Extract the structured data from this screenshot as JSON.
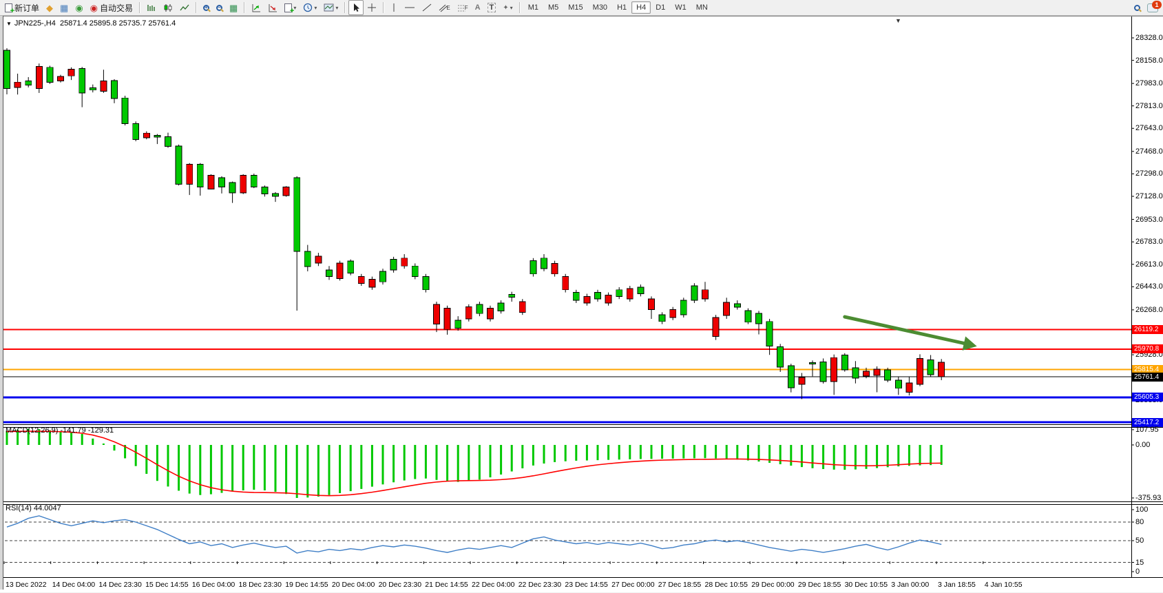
{
  "toolbar": {
    "new_order_label": "新订单",
    "autotrade_label": "自动交易",
    "timeframes": [
      "M1",
      "M5",
      "M15",
      "M30",
      "H1",
      "H4",
      "D1",
      "W1",
      "MN"
    ],
    "active_timeframe": "H4",
    "notification_count": "1",
    "channel_letter": "E",
    "fibonacci_letter": "F",
    "text_letter": "A",
    "label_letter": "T"
  },
  "chart": {
    "symbol_title": "JPN225-,H4",
    "ohlc_title": "25871.4 25895.8 25735.7 25761.4",
    "shift_marker": "▼",
    "title_triangle": "▼"
  },
  "chart_data": {
    "type": "candlestick",
    "symbol": "JPN225-",
    "timeframe": "H4",
    "current_bar": {
      "open": 25871.4,
      "high": 25895.8,
      "low": 25735.7,
      "close": 25761.4
    },
    "price_axis_ticks": [
      "28328.0",
      "28158.0",
      "27983.0",
      "27813.0",
      "27643.0",
      "27468.0",
      "27298.0",
      "27128.0",
      "26953.0",
      "26783.0",
      "26613.0",
      "26443.0",
      "26268.0",
      "26098.0",
      "25928.0",
      "25758.0",
      "25583.0",
      "25413.0"
    ],
    "levels": [
      {
        "label": "26119.2",
        "value": 26119.2,
        "color": "#FF0000",
        "width": 2
      },
      {
        "label": "25970.8",
        "value": 25970.8,
        "color": "#FF0000",
        "width": 2
      },
      {
        "label": "25815.4",
        "value": 25815.4,
        "color": "#FFA500",
        "width": 2
      },
      {
        "label": "25761.4",
        "value": 25761.4,
        "color": "#000000",
        "width": 1
      },
      {
        "label": "25605.3",
        "value": 25605.3,
        "color": "#0000EE",
        "width": 3
      },
      {
        "label": "25417.2",
        "value": 25417.2,
        "color": "#0000EE",
        "width": 3
      }
    ],
    "annotation_arrow": {
      "from_bar": 78,
      "from_price": 26215,
      "to_bar": 90.3,
      "to_price": 25992,
      "color": "#4C8C32"
    },
    "time_labels": [
      "13 Dec 2022",
      "14 Dec 04:00",
      "14 Dec 23:30",
      "15 Dec 14:55",
      "16 Dec 04:00",
      "18 Dec 23:30",
      "19 Dec 14:55",
      "20 Dec 04:00",
      "20 Dec 23:30",
      "21 Dec 14:55",
      "22 Dec 04:00",
      "22 Dec 23:30",
      "23 Dec 14:55",
      "27 Dec 00:00",
      "27 Dec 18:55",
      "28 Dec 10:55",
      "29 Dec 00:00",
      "29 Dec 18:55",
      "30 Dec 10:55",
      "3 Jan 00:00",
      "3 Jan 18:55",
      "4 Jan 10:55"
    ],
    "candle_colors": {
      "up": "#00C800",
      "down": "#EE0000",
      "outline": "#000000"
    },
    "candles": [
      [
        "g",
        28234,
        27945,
        28250,
        27900
      ],
      [
        "r",
        27993,
        27953,
        28057,
        27899
      ],
      [
        "g",
        28002,
        27971,
        28031,
        27953
      ],
      [
        "r",
        28112,
        27945,
        28134,
        27911
      ],
      [
        "g",
        28105,
        27992,
        28117,
        27979
      ],
      [
        "r",
        28036,
        28002,
        28048,
        27990
      ],
      [
        "r",
        28091,
        28040,
        28105,
        28009
      ],
      [
        "g",
        28095,
        27911,
        28108,
        27803
      ],
      [
        "g",
        27950,
        27933,
        27975,
        27915
      ],
      [
        "r",
        28002,
        27923,
        28087,
        27911
      ],
      [
        "g",
        28005,
        27868,
        28015,
        27833
      ],
      [
        "g",
        27873,
        27679,
        27890,
        27665
      ],
      [
        "g",
        27679,
        27559,
        27695,
        27545
      ],
      [
        "r",
        27607,
        27572,
        27620,
        27560
      ],
      [
        "g",
        27590,
        27576,
        27600,
        27524
      ],
      [
        "g",
        27579,
        27507,
        27610,
        27495
      ],
      [
        "g",
        27510,
        27219,
        27520,
        27210
      ],
      [
        "r",
        27370,
        27219,
        27380,
        27138
      ],
      [
        "g",
        27370,
        27198,
        27380,
        27133
      ],
      [
        "r",
        27287,
        27184,
        27295,
        27180
      ],
      [
        "g",
        27270,
        27198,
        27280,
        27150
      ],
      [
        "g",
        27232,
        27155,
        27240,
        27078
      ],
      [
        "r",
        27287,
        27155,
        27295,
        27145
      ],
      [
        "g",
        27287,
        27198,
        27300,
        27190
      ],
      [
        "g",
        27198,
        27147,
        27210,
        27126
      ],
      [
        "g",
        27150,
        27129,
        27160,
        27086
      ],
      [
        "r",
        27198,
        27133,
        27205,
        27125
      ],
      [
        "g",
        27270,
        26710,
        27280,
        26262
      ],
      [
        "g",
        26710,
        26597,
        26760,
        26560
      ],
      [
        "r",
        26674,
        26623,
        26700,
        26600
      ],
      [
        "g",
        26571,
        26520,
        26600,
        26495
      ],
      [
        "r",
        26623,
        26505,
        26640,
        26490
      ],
      [
        "g",
        26638,
        26546,
        26650,
        26530
      ],
      [
        "r",
        26520,
        26468,
        26540,
        26450
      ],
      [
        "r",
        26500,
        26440,
        26520,
        26420
      ],
      [
        "g",
        26560,
        26480,
        26580,
        26460
      ],
      [
        "g",
        26650,
        26570,
        26670,
        26550
      ],
      [
        "r",
        26660,
        26600,
        26690,
        26580
      ],
      [
        "g",
        26600,
        26520,
        26620,
        26500
      ],
      [
        "g",
        26520,
        26420,
        26540,
        26400
      ],
      [
        "r",
        26310,
        26160,
        26330,
        26100
      ],
      [
        "r",
        26280,
        26120,
        26300,
        26080
      ],
      [
        "g",
        26190,
        26130,
        26220,
        26110
      ],
      [
        "r",
        26290,
        26200,
        26310,
        26180
      ],
      [
        "g",
        26310,
        26240,
        26330,
        26220
      ],
      [
        "r",
        26280,
        26200,
        26300,
        26180
      ],
      [
        "g",
        26320,
        26260,
        26340,
        26240
      ],
      [
        "g",
        26385,
        26365,
        26405,
        26330
      ],
      [
        "r",
        26330,
        26250,
        26350,
        26230
      ],
      [
        "g",
        26640,
        26540,
        26660,
        26520
      ],
      [
        "g",
        26660,
        26580,
        26690,
        26560
      ],
      [
        "r",
        26620,
        26540,
        26640,
        26520
      ],
      [
        "r",
        26520,
        26420,
        26540,
        26400
      ],
      [
        "g",
        26400,
        26340,
        26420,
        26320
      ],
      [
        "r",
        26370,
        26320,
        26390,
        26300
      ],
      [
        "g",
        26400,
        26350,
        26420,
        26330
      ],
      [
        "r",
        26380,
        26320,
        26400,
        26300
      ],
      [
        "g",
        26420,
        26370,
        26440,
        26350
      ],
      [
        "r",
        26430,
        26350,
        26450,
        26330
      ],
      [
        "g",
        26440,
        26390,
        26460,
        26370
      ],
      [
        "r",
        26350,
        26270,
        26370,
        26200
      ],
      [
        "g",
        26230,
        26180,
        26250,
        26160
      ],
      [
        "r",
        26270,
        26210,
        26290,
        26190
      ],
      [
        "g",
        26340,
        26230,
        26360,
        26210
      ],
      [
        "g",
        26450,
        26340,
        26470,
        26320
      ],
      [
        "r",
        26420,
        26350,
        26480,
        26330
      ],
      [
        "r",
        26211,
        26066,
        26230,
        26040
      ],
      [
        "r",
        26324,
        26226,
        26360,
        26200
      ],
      [
        "g",
        26314,
        26288,
        26340,
        26270
      ],
      [
        "g",
        26263,
        26175,
        26280,
        26160
      ],
      [
        "g",
        26242,
        26164,
        26260,
        26082
      ],
      [
        "g",
        26180,
        25994,
        26200,
        25927
      ],
      [
        "g",
        25989,
        25834,
        26010,
        25798
      ],
      [
        "g",
        25844,
        25679,
        25860,
        25643
      ],
      [
        "r",
        25757,
        25705,
        25790,
        25592
      ],
      [
        "g",
        25868,
        25858,
        25885,
        25765
      ],
      [
        "g",
        25874,
        25726,
        25900,
        25710
      ],
      [
        "r",
        25906,
        25726,
        25930,
        25624
      ],
      [
        "g",
        25925,
        25813,
        25940,
        25800
      ],
      [
        "g",
        25829,
        25752,
        25880,
        25711
      ],
      [
        "r",
        25803,
        25767,
        25830,
        25750
      ],
      [
        "r",
        25818,
        25772,
        25840,
        25644
      ],
      [
        "g",
        25813,
        25736,
        25830,
        25720
      ],
      [
        "g",
        25736,
        25674,
        25760,
        25624
      ],
      [
        "r",
        25715,
        25644,
        25760,
        25620
      ],
      [
        "r",
        25900,
        25705,
        25932,
        25690
      ],
      [
        "g",
        25890,
        25777,
        25926,
        25760
      ],
      [
        "r",
        25871.4,
        25761.4,
        25895.8,
        25735.7
      ]
    ],
    "macd": {
      "label": "MACD(12,26,9)",
      "values_label": "-141.79 -129.31",
      "axis_ticks": [
        "107.95",
        "0.00",
        "-375.93"
      ],
      "histogram_color": "#00C800",
      "signal_color": "#FF0000",
      "histogram": [
        100,
        108,
        115,
        112,
        104,
        96,
        88,
        78,
        45,
        10,
        -40,
        -95,
        -150,
        -205,
        -255,
        -295,
        -325,
        -345,
        -355,
        -350,
        -340,
        -330,
        -322,
        -318,
        -322,
        -332,
        -348,
        -376,
        -373,
        -366,
        -355,
        -342,
        -328,
        -312,
        -296,
        -280,
        -265,
        -252,
        -242,
        -238,
        -248,
        -258,
        -262,
        -256,
        -246,
        -230,
        -210,
        -188,
        -166,
        -146,
        -132,
        -122,
        -116,
        -112,
        -110,
        -108,
        -106,
        -104,
        -102,
        -100,
        -99,
        -98,
        -97,
        -96,
        -95,
        -94,
        -96,
        -99,
        -104,
        -110,
        -118,
        -127,
        -137,
        -147,
        -157,
        -165,
        -171,
        -175,
        -176,
        -174,
        -170,
        -164,
        -158,
        -152,
        -148,
        -145,
        -143,
        -141.79
      ],
      "signal": [
        95,
        96,
        97,
        97,
        96,
        94,
        90,
        83,
        70,
        50,
        22,
        -12,
        -52,
        -95,
        -140,
        -183,
        -222,
        -255,
        -282,
        -303,
        -318,
        -328,
        -334,
        -337,
        -338,
        -339,
        -341,
        -346,
        -353,
        -358,
        -360,
        -358,
        -353,
        -345,
        -335,
        -323,
        -310,
        -297,
        -284,
        -272,
        -263,
        -257,
        -254,
        -253,
        -252,
        -250,
        -246,
        -240,
        -231,
        -219,
        -205,
        -190,
        -176,
        -163,
        -151,
        -141,
        -133,
        -126,
        -120,
        -115,
        -111,
        -108,
        -106,
        -104,
        -103,
        -102,
        -101,
        -100,
        -100,
        -101,
        -103,
        -106,
        -110,
        -115,
        -121,
        -128,
        -134,
        -140,
        -144,
        -147,
        -148,
        -147,
        -144,
        -140,
        -136,
        -132,
        -130,
        -129.31
      ]
    },
    "rsi": {
      "label": "RSI(14)",
      "value_label": "44.0047",
      "axis_ticks": [
        100,
        80,
        50,
        15,
        0
      ],
      "dashed_levels": [
        80,
        50,
        15
      ],
      "line_color": "#3E7EC6",
      "values": [
        72,
        78,
        86,
        90,
        84,
        78,
        74,
        78,
        82,
        79,
        82,
        84,
        80,
        74,
        68,
        60,
        52,
        45,
        48,
        42,
        45,
        39,
        43,
        46,
        42,
        39,
        41,
        30,
        34,
        32,
        36,
        34,
        37,
        35,
        39,
        42,
        40,
        43,
        41,
        38,
        34,
        31,
        35,
        38,
        36,
        39,
        42,
        39,
        46,
        53,
        56,
        51,
        48,
        45,
        47,
        44,
        47,
        45,
        43,
        46,
        42,
        37,
        39,
        43,
        45,
        49,
        51,
        48,
        50,
        47,
        43,
        39,
        36,
        33,
        36,
        34,
        31,
        34,
        37,
        41,
        44,
        39,
        35,
        40,
        46,
        51,
        48,
        44
      ]
    }
  }
}
